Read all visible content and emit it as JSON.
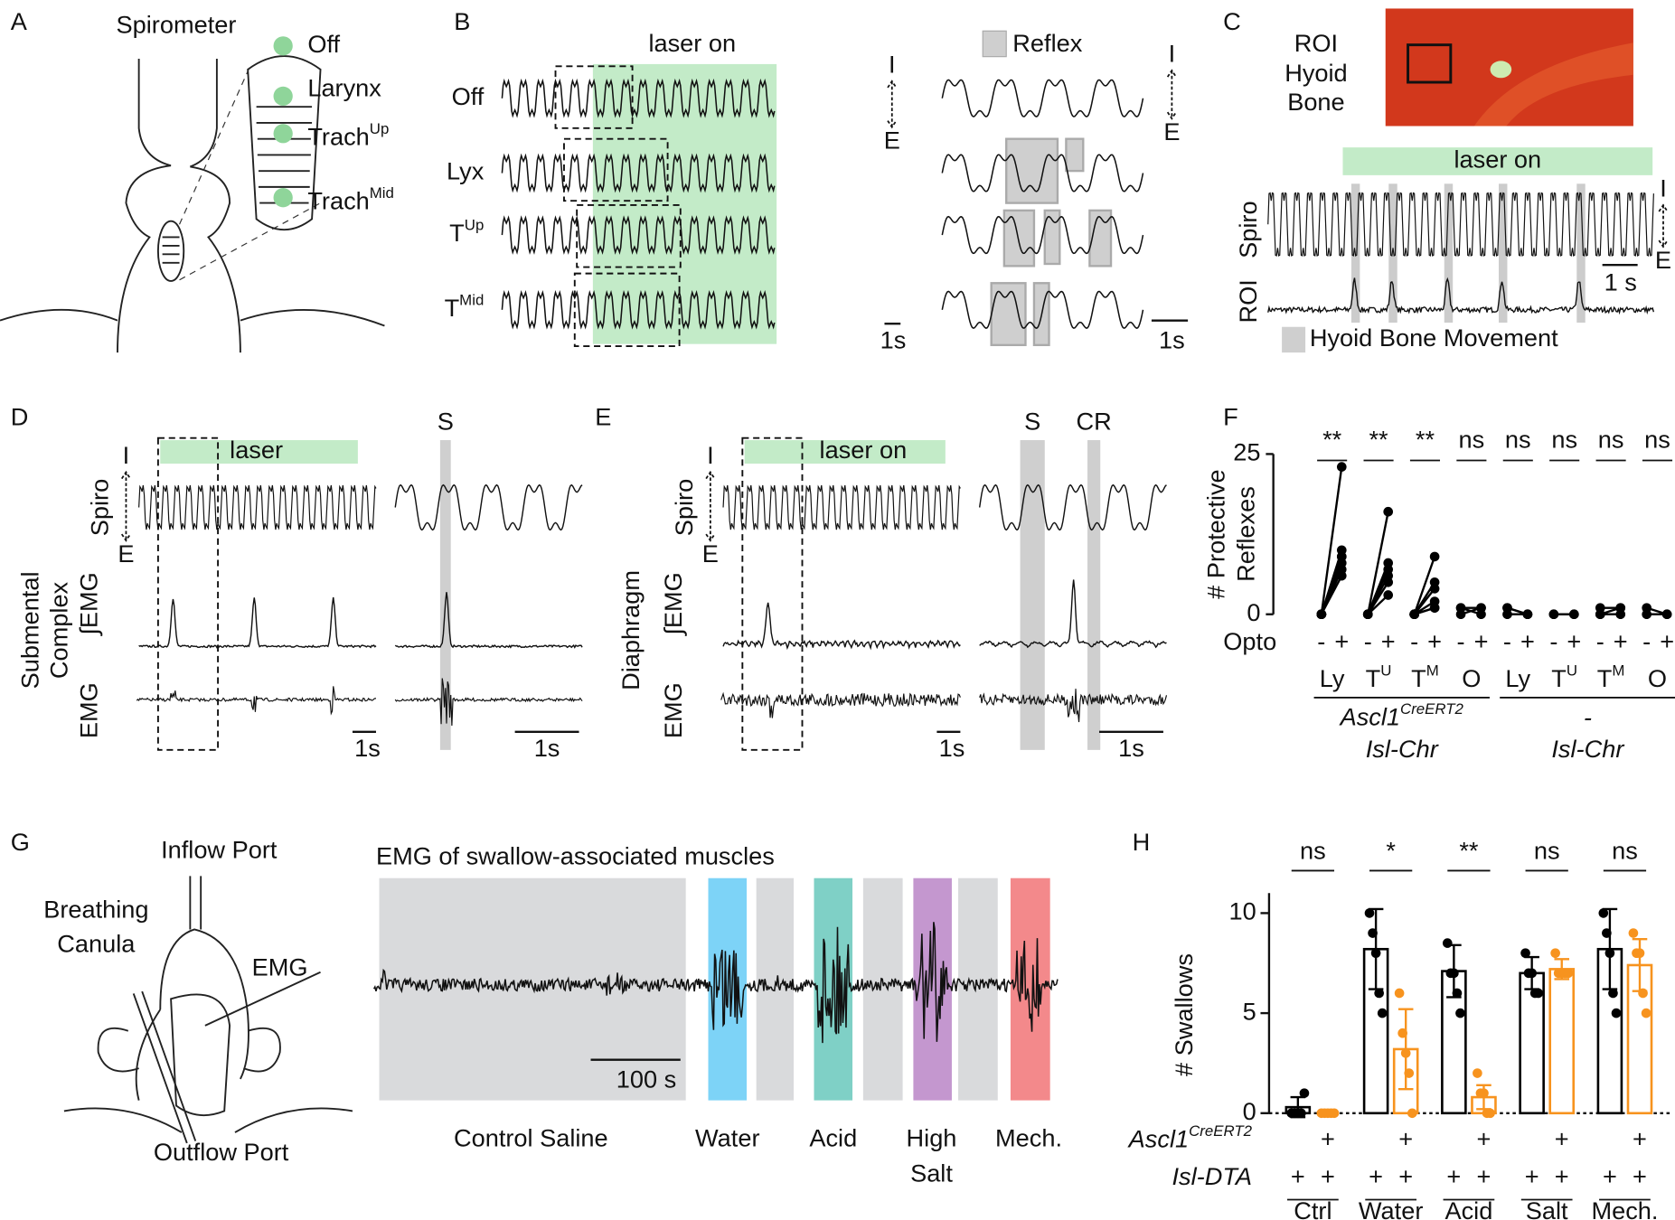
{
  "panels": {
    "A": {
      "label": "A",
      "title": "Spirometer",
      "sites": [
        "Off",
        "Larynx",
        {
          "text": "Trach",
          "sup": "Up"
        },
        {
          "text": "Trach",
          "sup": "Mid"
        }
      ]
    },
    "B": {
      "label": "B",
      "laser": "laser on",
      "rows": [
        "Off",
        "Lyx",
        {
          "text": "T",
          "sup": "Up"
        },
        {
          "text": "T",
          "sup": "Mid"
        }
      ],
      "legend": "Reflex",
      "inspiration": "I",
      "expiration": "E",
      "scale_bars": [
        "1s",
        "1s"
      ]
    },
    "C": {
      "label": "C",
      "image_label": [
        "ROI",
        "Hyoid",
        "Bone"
      ],
      "laser": "laser on",
      "traces": [
        "Spiro",
        "ROI"
      ],
      "inspiration": "I",
      "expiration": "E",
      "scale_bar": "1 s",
      "legend": "Hyoid Bone Movement"
    },
    "D": {
      "label": "D",
      "laser": "laser",
      "event": "S",
      "inspiration": "I",
      "expiration": "E",
      "traces": [
        "Spiro",
        "∫EMG",
        "EMG"
      ],
      "muscle": [
        "Submental",
        "Complex"
      ],
      "scale_bars": [
        "1s",
        "1s"
      ]
    },
    "E": {
      "label": "E",
      "laser": "laser on",
      "events": [
        "S",
        "CR"
      ],
      "inspiration": "I",
      "expiration": "E",
      "traces": [
        "Spiro",
        "∫EMG",
        "EMG"
      ],
      "muscle": [
        "Diaphragm"
      ],
      "scale_bars": [
        "1s",
        "1s"
      ]
    },
    "G": {
      "label": "G",
      "ports": {
        "inflow": "Inflow Port",
        "breathing": [
          "Breathing",
          "Canula"
        ],
        "emg": "EMG",
        "outflow": "Outflow Port"
      },
      "trace_title": "EMG of swallow-associated muscles",
      "scale_bar": "100 s",
      "stimuli": [
        {
          "name": [
            "Control Saline"
          ],
          "color": "#666666",
          "band_color": "#d9dadc"
        },
        {
          "name": [
            "Water"
          ],
          "color": "#29abe2",
          "band_color": "#7dd3f7"
        },
        {
          "name": [
            "Acid"
          ],
          "color": "#1aa394",
          "band_color": "#7fd0c6"
        },
        {
          "name": [
            "High",
            "Salt"
          ],
          "color": "#93278f",
          "band_color": "#c497cf"
        },
        {
          "name": [
            "Mech."
          ],
          "color": "#f08c8c",
          "band_color": "#f3898b"
        }
      ]
    }
  },
  "chart_data": [
    {
      "type": "paired-scatter",
      "label": "F",
      "y_label": [
        "# Protective",
        "Reflexes"
      ],
      "ylim": [
        0,
        25
      ],
      "yticks": [
        0,
        25
      ],
      "x_label": "Opto",
      "conditions": [
        "-",
        "+"
      ],
      "color": "#000000",
      "genotypes": [
        {
          "lines": [
            {
              "text": "Ascl1",
              "sup": "CreERT2"
            },
            "Isl-Chr"
          ],
          "groups": [
            {
              "name": "Ly",
              "significance": "**",
              "pairs": [
                [
                  0,
                  23
                ],
                [
                  0,
                  10
                ],
                [
                  0,
                  9
                ],
                [
                  0,
                  9
                ],
                [
                  0,
                  8
                ],
                [
                  0,
                  7
                ],
                [
                  0,
                  6
                ]
              ]
            },
            {
              "name": {
                "text": "T",
                "sup": "U"
              },
              "significance": "**",
              "pairs": [
                [
                  0,
                  16
                ],
                [
                  0,
                  8
                ],
                [
                  0,
                  7
                ],
                [
                  0,
                  6
                ],
                [
                  0,
                  5
                ],
                [
                  0,
                  3
                ]
              ]
            },
            {
              "name": {
                "text": "T",
                "sup": "M"
              },
              "significance": "**",
              "pairs": [
                [
                  0,
                  9
                ],
                [
                  0,
                  5
                ],
                [
                  0,
                  4
                ],
                [
                  0,
                  2
                ],
                [
                  0,
                  1
                ],
                [
                  0,
                  1
                ]
              ]
            },
            {
              "name": "O",
              "significance": "ns",
              "pairs": [
                [
                  1,
                  1
                ],
                [
                  0,
                  1
                ],
                [
                  1,
                  0
                ]
              ]
            }
          ]
        },
        {
          "lines": [
            "-",
            "Isl-Chr"
          ],
          "groups": [
            {
              "name": "Ly",
              "significance": "ns",
              "pairs": [
                [
                  1,
                  0
                ],
                [
                  0,
                  0
                ],
                [
                  1,
                  0
                ]
              ]
            },
            {
              "name": {
                "text": "T",
                "sup": "U"
              },
              "significance": "ns",
              "pairs": [
                [
                  0,
                  0
                ],
                [
                  0,
                  0
                ]
              ]
            },
            {
              "name": {
                "text": "T",
                "sup": "M"
              },
              "significance": "ns",
              "pairs": [
                [
                  0,
                  1
                ],
                [
                  1,
                  1
                ],
                [
                  0,
                  0
                ]
              ]
            },
            {
              "name": "O",
              "significance": "ns",
              "pairs": [
                [
                  1,
                  0
                ],
                [
                  0,
                  0
                ]
              ]
            }
          ]
        }
      ]
    },
    {
      "type": "bar",
      "label": "H",
      "y_label": "# Swallows",
      "ylim": [
        0,
        11
      ],
      "yticks": [
        0,
        5,
        10
      ],
      "categories": [
        "Ctrl",
        "Water",
        "Acid",
        "Salt",
        "Mech."
      ],
      "category_colors": [
        "#bbbbbb",
        "#8ed8f8",
        "#6ccbc0",
        "#c59ad0",
        "#f4a0a0"
      ],
      "significance": [
        "ns",
        "*",
        "**",
        "ns",
        "ns"
      ],
      "series": [
        {
          "color": "#000000",
          "values": [
            0.3,
            8.2,
            7.1,
            7.0,
            8.2
          ],
          "errors": [
            0.5,
            2.0,
            1.3,
            0.8,
            2.0
          ],
          "points": [
            [
              0,
              0,
              0,
              0,
              1
            ],
            [
              10,
              9,
              8,
              6,
              5
            ],
            [
              8.5,
              7,
              7,
              6,
              5
            ],
            [
              8,
              7,
              7,
              6,
              6
            ],
            [
              10,
              9,
              8,
              6,
              5
            ]
          ]
        },
        {
          "color": "#f7931e",
          "values": [
            0,
            3.2,
            0.8,
            7.2,
            7.4
          ],
          "errors": [
            0,
            2.0,
            0.6,
            0.5,
            1.3
          ],
          "points": [
            [
              0,
              0,
              0,
              0,
              0
            ],
            [
              6,
              4,
              3,
              2,
              0
            ],
            [
              2,
              1,
              1,
              0,
              0
            ],
            [
              8,
              7,
              7,
              7,
              7
            ],
            [
              9,
              8,
              8,
              6,
              5
            ]
          ]
        }
      ],
      "genotype_rows": [
        {
          "name": {
            "text": "Ascl1",
            "sup": "CreERT2"
          },
          "series_marks": [
            null,
            "+"
          ]
        },
        {
          "name": "Isl-DTA",
          "series_marks": [
            "+",
            "+"
          ]
        }
      ]
    }
  ]
}
